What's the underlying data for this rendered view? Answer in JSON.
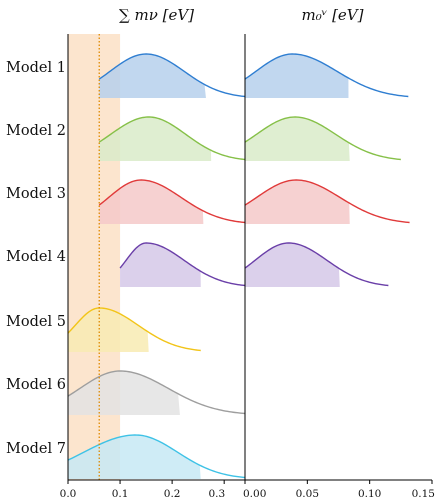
{
  "chart_data": {
    "type": "area",
    "titles": {
      "left": "∑ mν [eV]",
      "right": "m₀ᵛ [eV]"
    },
    "models": [
      {
        "name": "Model 1",
        "color": "#2f7ed1",
        "fill": "#b6d0ec",
        "sum_mnu": {
          "lower": 0.06,
          "peak": 0.15,
          "upper": 0.265,
          "tail": 0.34
        },
        "m0": {
          "lower": 0.0,
          "peak": 0.038,
          "upper": 0.083,
          "tail": 0.131
        }
      },
      {
        "name": "Model 2",
        "color": "#86c048",
        "fill": "#d9ebc9",
        "sum_mnu": {
          "lower": 0.06,
          "peak": 0.155,
          "upper": 0.275,
          "tail": 0.34
        },
        "m0": {
          "lower": 0.0,
          "peak": 0.04,
          "upper": 0.084,
          "tail": 0.125
        }
      },
      {
        "name": "Model 3",
        "color": "#e03a3a",
        "fill": "#f5c9c9",
        "sum_mnu": {
          "lower": 0.06,
          "peak": 0.14,
          "upper": 0.26,
          "tail": 0.34
        },
        "m0": {
          "lower": 0.0,
          "peak": 0.041,
          "upper": 0.084,
          "tail": 0.132
        }
      },
      {
        "name": "Model 4",
        "color": "#6a3fa8",
        "fill": "#d5c8e8",
        "sum_mnu": {
          "lower": 0.1,
          "peak": 0.15,
          "upper": 0.255,
          "tail": 0.34
        },
        "m0": {
          "lower": 0.0,
          "peak": 0.035,
          "upper": 0.076,
          "tail": 0.115
        }
      },
      {
        "name": "Model 5",
        "color": "#f2c418",
        "fill": "#f8ebb3",
        "sum_mnu": {
          "lower": 0.0,
          "peak": 0.06,
          "upper": 0.155,
          "tail": 0.255
        },
        "m0": null
      },
      {
        "name": "Model 6",
        "color": "#9e9e9e",
        "fill": "#e3e3e3",
        "sum_mnu": {
          "lower": 0.0,
          "peak": 0.1,
          "upper": 0.215,
          "tail": 0.34
        },
        "m0": null
      },
      {
        "name": "Model 7",
        "color": "#3ec2e6",
        "fill": "#c7e9f5",
        "sum_mnu": {
          "lower": 0.0,
          "peak": 0.13,
          "upper": 0.255,
          "tail": 0.34
        },
        "m0": null
      }
    ],
    "left_axis": {
      "xlim": [
        0.0,
        0.34
      ],
      "ticks": [
        0.0,
        0.1,
        0.2,
        0.3
      ],
      "tick_labels": [
        "0.0",
        "0.1",
        "0.2",
        "0.3"
      ]
    },
    "right_axis": {
      "xlim": [
        0.0,
        0.15
      ],
      "ticks": [
        0.0,
        0.05,
        0.1,
        0.15
      ],
      "tick_labels": [
        "0.00",
        "0.05",
        "0.10",
        "0.15"
      ]
    },
    "shaded_band_sum_mnu": [
      0.0,
      0.1
    ],
    "dotted_line_sum_mnu": 0.06,
    "band_color": "#fbdcbd",
    "dotted_line_color": "#e08a00"
  }
}
